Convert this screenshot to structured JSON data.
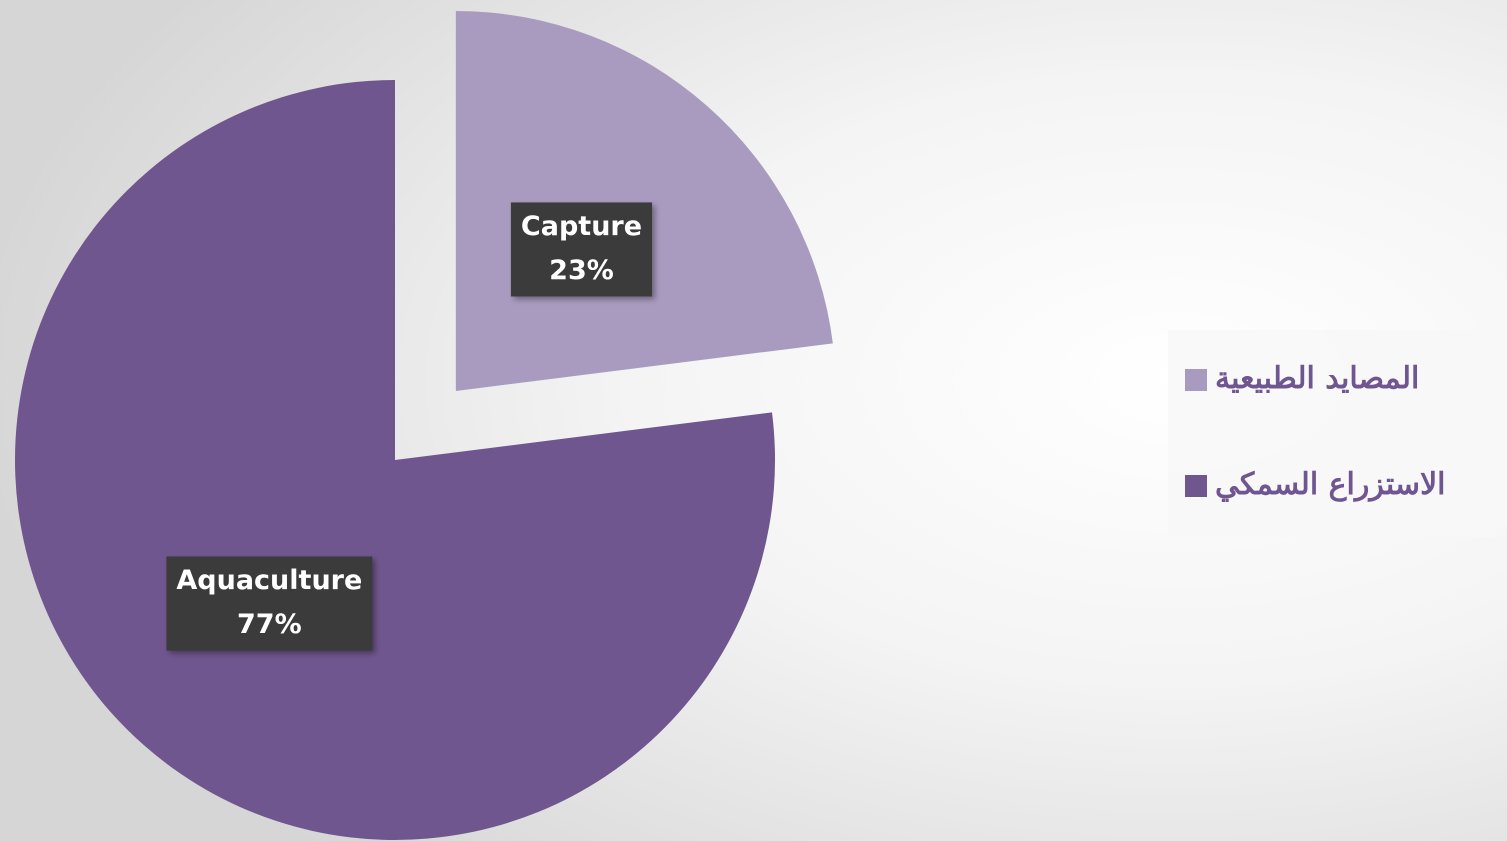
{
  "chart_data": {
    "type": "pie",
    "categories": [
      "Capture",
      "Aquaculture"
    ],
    "values": [
      23,
      77
    ],
    "value_labels": [
      "23%",
      "77%"
    ],
    "colors": [
      "#a99bc0",
      "#70568e"
    ],
    "legend": [
      "المصايد الطبيعية",
      "الاستزراع السمكي"
    ],
    "legend_position": "right"
  }
}
